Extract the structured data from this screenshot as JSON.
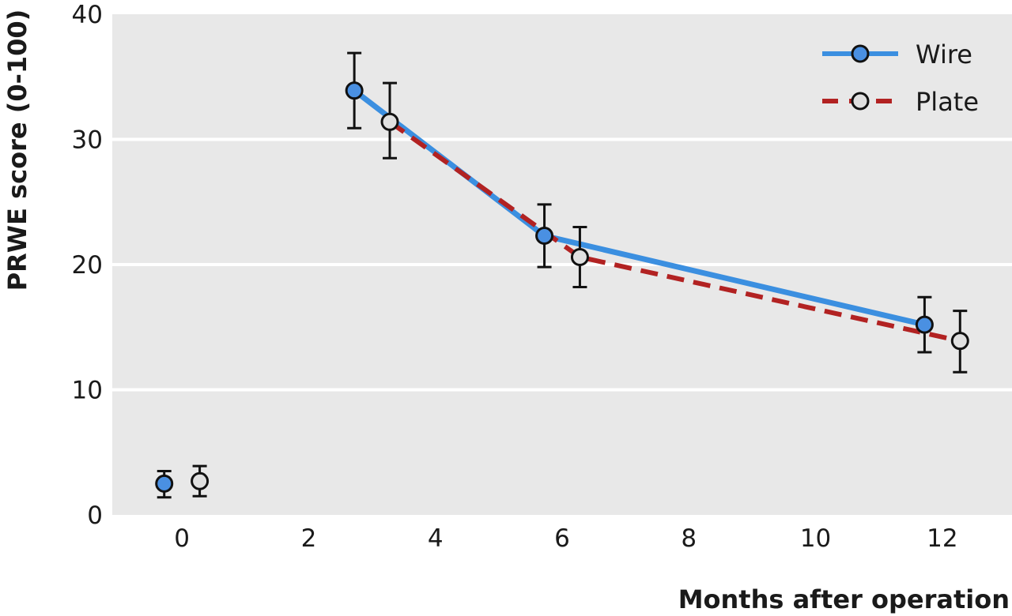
{
  "chart_data": {
    "type": "line",
    "title": "",
    "xlabel": "Months after operation",
    "ylabel": "PRWE score (0-100)",
    "xlim": [
      -1.1,
      13.1
    ],
    "ylim": [
      0,
      40
    ],
    "xticks": [
      0,
      2,
      4,
      6,
      8,
      10,
      12
    ],
    "yticks": [
      0,
      10,
      20,
      30,
      40
    ],
    "grid": "horizontal",
    "legend_position": "top-right",
    "plot_background": "#e8e8e8",
    "series": [
      {
        "name": "Wire",
        "color": "#3b8fe0",
        "line_style": "solid",
        "marker_fill": "#4a90e2",
        "connect_from_index": 1,
        "points": [
          {
            "x": -0.28,
            "y": 2.5,
            "err_low": 1.4,
            "err_high": 3.5
          },
          {
            "x": 2.72,
            "y": 33.9,
            "err_low": 30.9,
            "err_high": 36.9
          },
          {
            "x": 5.72,
            "y": 22.3,
            "err_low": 19.8,
            "err_high": 24.8
          },
          {
            "x": 11.72,
            "y": 15.2,
            "err_low": 13.0,
            "err_high": 17.4
          }
        ]
      },
      {
        "name": "Plate",
        "color": "#b22222",
        "line_style": "dashed",
        "marker_fill": "#e0e0e0",
        "connect_from_index": 1,
        "points": [
          {
            "x": 0.28,
            "y": 2.7,
            "err_low": 1.5,
            "err_high": 3.9
          },
          {
            "x": 3.28,
            "y": 31.4,
            "err_low": 28.5,
            "err_high": 34.5
          },
          {
            "x": 6.28,
            "y": 20.6,
            "err_low": 18.2,
            "err_high": 23.0
          },
          {
            "x": 12.28,
            "y": 13.9,
            "err_low": 11.4,
            "err_high": 16.3
          }
        ]
      }
    ]
  }
}
